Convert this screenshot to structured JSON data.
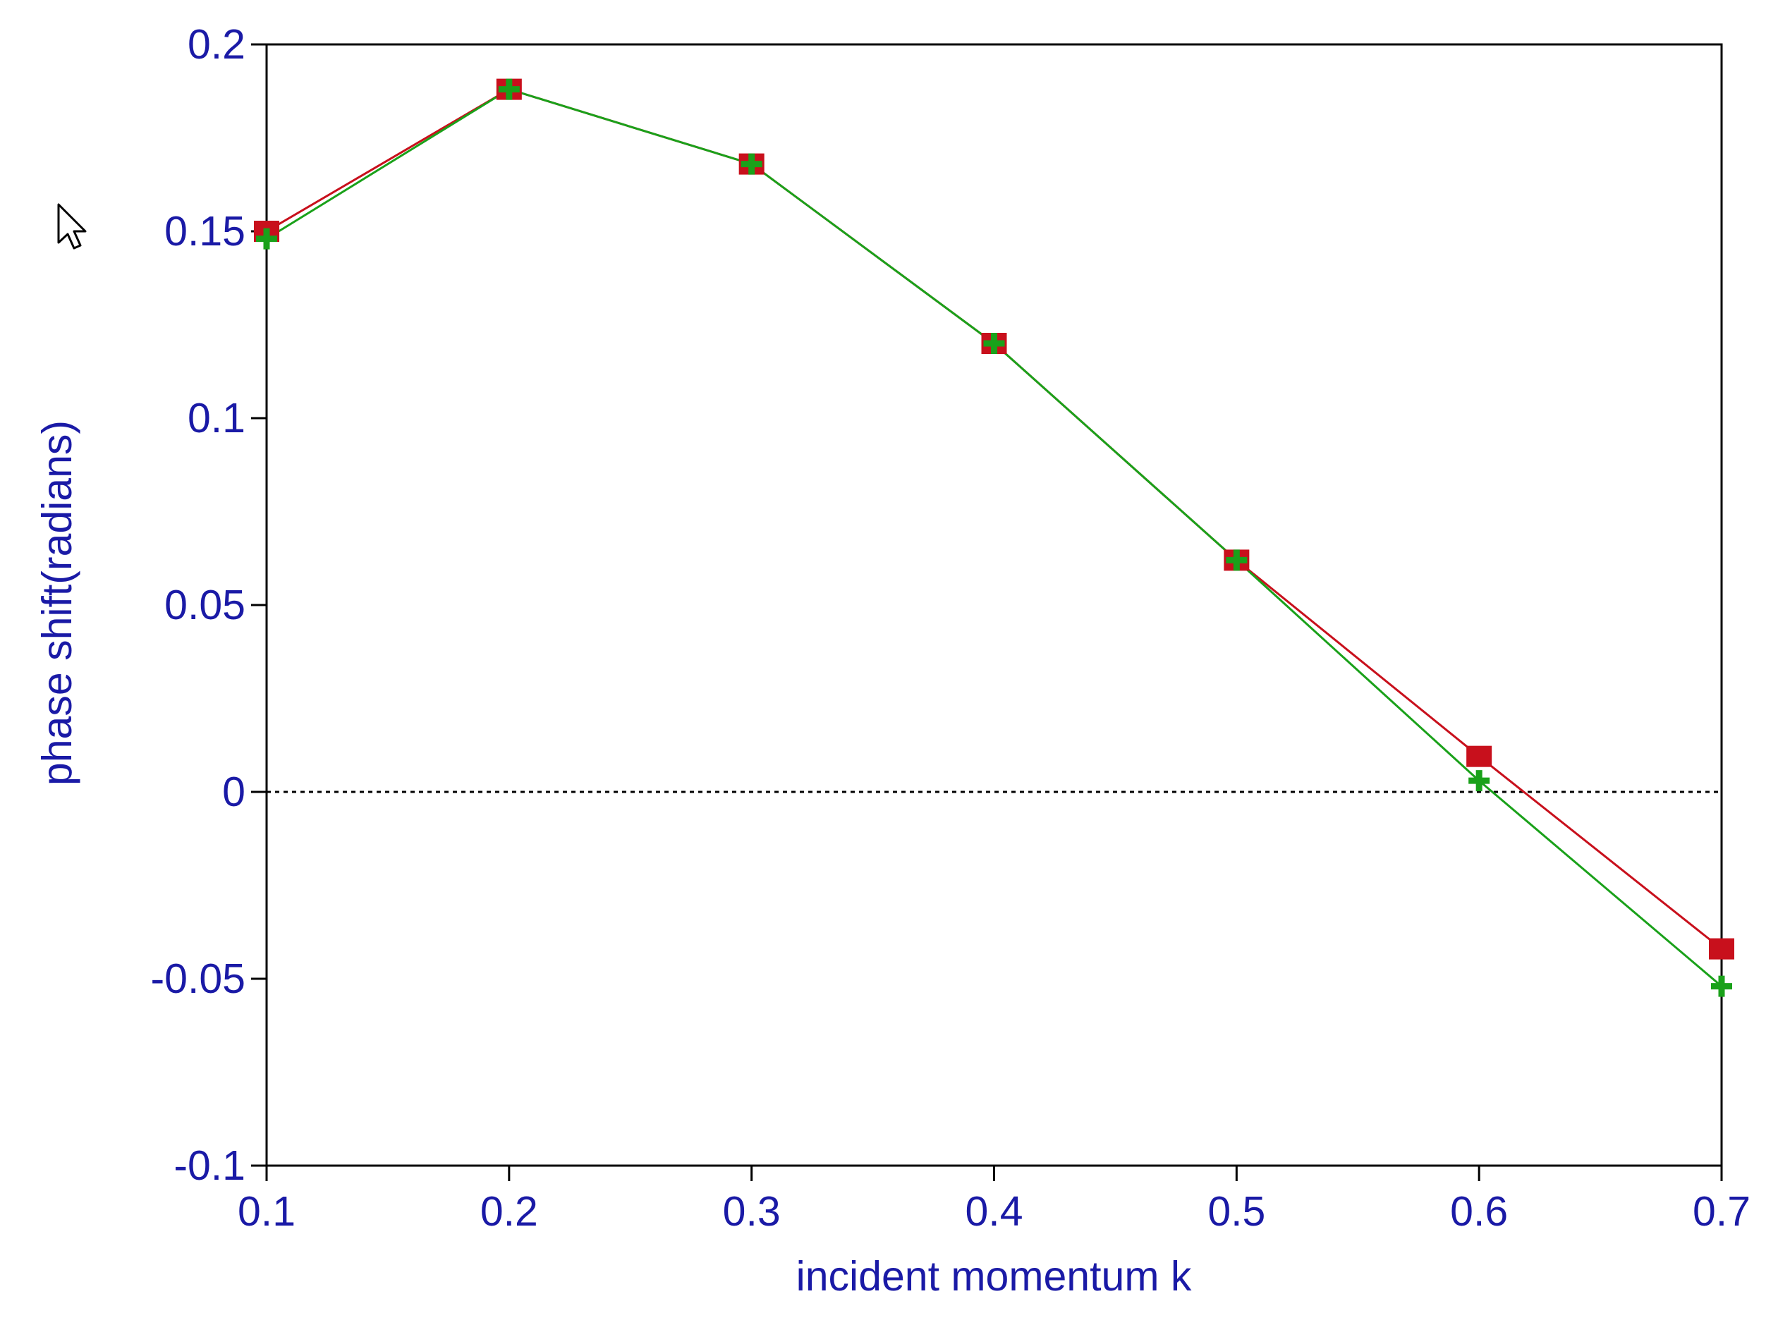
{
  "chart_data": {
    "type": "line",
    "title": "",
    "xlabel": "incident momentum k",
    "ylabel": "phase shift(radians)",
    "xlim": [
      0.1,
      0.7
    ],
    "ylim": [
      -0.1,
      0.2
    ],
    "x_ticks": [
      "0.1",
      "0.2",
      "0.3",
      "0.4",
      "0.5",
      "0.6",
      "0.7"
    ],
    "y_ticks": [
      "0.2",
      "0.15",
      "0.1",
      "0.05",
      "0",
      "-0.05",
      "-0.1"
    ],
    "grid": false,
    "legend": "none",
    "reference_line": {
      "y": 0,
      "style": "dotted",
      "color": "#000000"
    },
    "x": [
      0.1,
      0.2,
      0.3,
      0.4,
      0.5,
      0.6,
      0.7
    ],
    "series": [
      {
        "values": [
          0.15,
          0.188,
          0.168,
          0.12,
          0.062,
          0.0095,
          -0.042
        ],
        "color": "#c8101c",
        "marker": "square"
      },
      {
        "values": [
          0.148,
          0.188,
          0.168,
          0.12,
          0.062,
          0.003,
          -0.052
        ],
        "color": "#1aa11a",
        "marker": "plus"
      }
    ]
  },
  "decor": {
    "cursor_icon": "arrow-cursor-icon"
  }
}
